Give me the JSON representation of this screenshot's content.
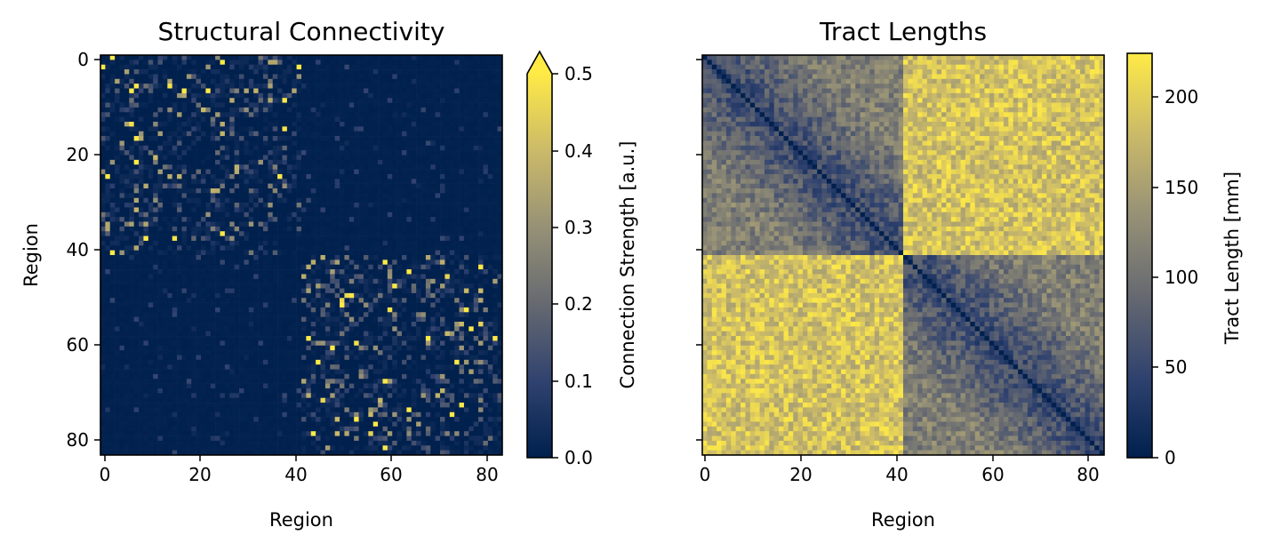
{
  "chart_data": [
    {
      "type": "heatmap",
      "title": "Structural Connectivity",
      "xlabel": "Region",
      "ylabel": "Region",
      "n_regions": 84,
      "x_ticks": [
        "0",
        "20",
        "40",
        "60",
        "80"
      ],
      "y_ticks": [
        "0",
        "20",
        "40",
        "60",
        "80"
      ],
      "colormap": "cividis",
      "colorbar": {
        "label": "Connection Strength [a.u.]",
        "range": [
          0,
          0.5
        ],
        "extend": "max",
        "ticks": [
          "0.0",
          "0.1",
          "0.2",
          "0.3",
          "0.4",
          "0.5"
        ]
      },
      "structure": "sparse, block-diagonal: dense within-hemisphere blocks (regions 0-41 and 42-83), near zero between hemispheres, few strong connections reach the 0.5 cap"
    },
    {
      "type": "heatmap",
      "title": "Tract Lengths",
      "xlabel": "Region",
      "ylabel": "",
      "n_regions": 84,
      "x_ticks": [
        "0",
        "20",
        "40",
        "60",
        "80"
      ],
      "colormap": "cividis",
      "colorbar": {
        "label": "Tract Length [mm]",
        "range": [
          0,
          222
        ],
        "ticks": [
          "0",
          "50",
          "100",
          "150",
          "200"
        ]
      },
      "structure": "zero diagonal; shorter within-hemisphere lengths (about 50-120 mm), longer between hemispheres (about 150-222 mm)"
    }
  ]
}
